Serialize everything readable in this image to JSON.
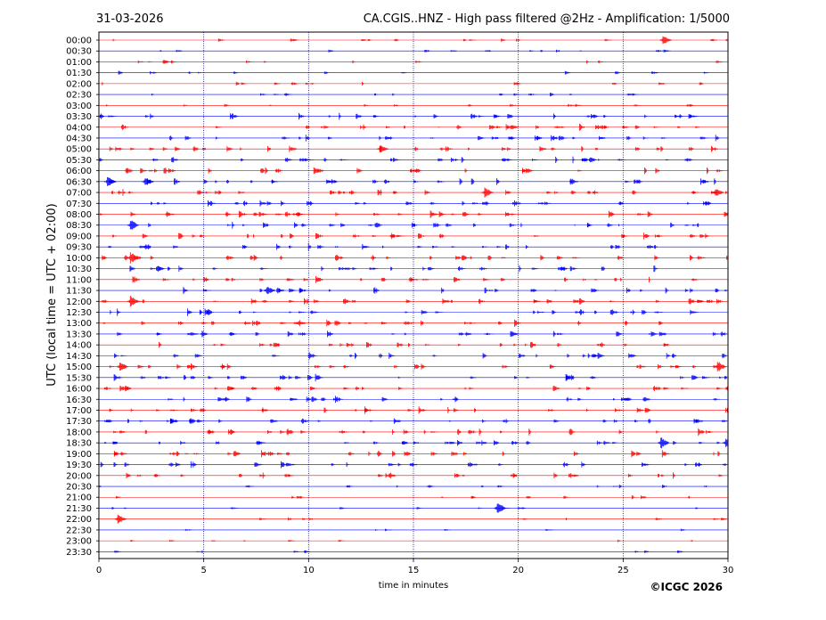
{
  "header": {
    "date": "31-03-2026",
    "title": "CA.CGIS..HNZ - High pass filtered @2Hz - Amplification: 1/5000"
  },
  "footer": {
    "copyright": "©ICGC 2026"
  },
  "colors": {
    "trace_a": "#ff0000",
    "trace_b": "#0000ff",
    "grid": "#000080"
  },
  "chart_data": {
    "type": "line",
    "title": "CA.CGIS..HNZ - High pass filtered @2Hz - Amplification: 1/5000",
    "xlabel": "time in minutes",
    "ylabel": "UTC (local time = UTC + 02:00)",
    "xlim": [
      0,
      30
    ],
    "x_ticks": [
      "0",
      "5",
      "10",
      "15",
      "20",
      "25",
      "30"
    ],
    "grid_x": [
      5,
      10,
      15,
      20,
      25
    ],
    "row_labels": [
      "00:00",
      "00:30",
      "01:00",
      "01:30",
      "02:00",
      "02:30",
      "03:00",
      "03:30",
      "04:00",
      "04:30",
      "05:00",
      "05:30",
      "06:00",
      "06:30",
      "07:00",
      "07:30",
      "08:00",
      "08:30",
      "09:00",
      "09:30",
      "10:00",
      "10:30",
      "11:00",
      "11:30",
      "12:00",
      "12:30",
      "13:00",
      "13:30",
      "14:00",
      "14:30",
      "15:00",
      "15:30",
      "16:00",
      "16:30",
      "17:00",
      "17:30",
      "18:00",
      "18:30",
      "19:00",
      "19:30",
      "20:00",
      "20:30",
      "21:00",
      "21:30",
      "22:00",
      "22:30",
      "23:00",
      "23:30"
    ],
    "row_colors": "alternating red (even rows) / blue (odd rows)",
    "notable_events": [
      {
        "row": "00:00",
        "minute": 26.9
      },
      {
        "row": "05:00",
        "minute": 13.4
      },
      {
        "row": "06:30",
        "minute": 0.4
      },
      {
        "row": "06:30",
        "minute": 2.2
      },
      {
        "row": "07:00",
        "minute": 18.4
      },
      {
        "row": "07:00",
        "minute": 29.4
      },
      {
        "row": "08:30",
        "minute": 1.5
      },
      {
        "row": "10:00",
        "minute": 1.5
      },
      {
        "row": "11:30",
        "minute": 8.0
      },
      {
        "row": "12:00",
        "minute": 1.5
      },
      {
        "row": "15:00",
        "minute": 1.0
      },
      {
        "row": "15:00",
        "minute": 29.5
      },
      {
        "row": "18:30",
        "minute": 26.8
      },
      {
        "row": "18:30",
        "minute": 29.9
      },
      {
        "row": "21:30",
        "minute": 19.0
      },
      {
        "row": "22:00",
        "minute": 0.9
      }
    ]
  }
}
